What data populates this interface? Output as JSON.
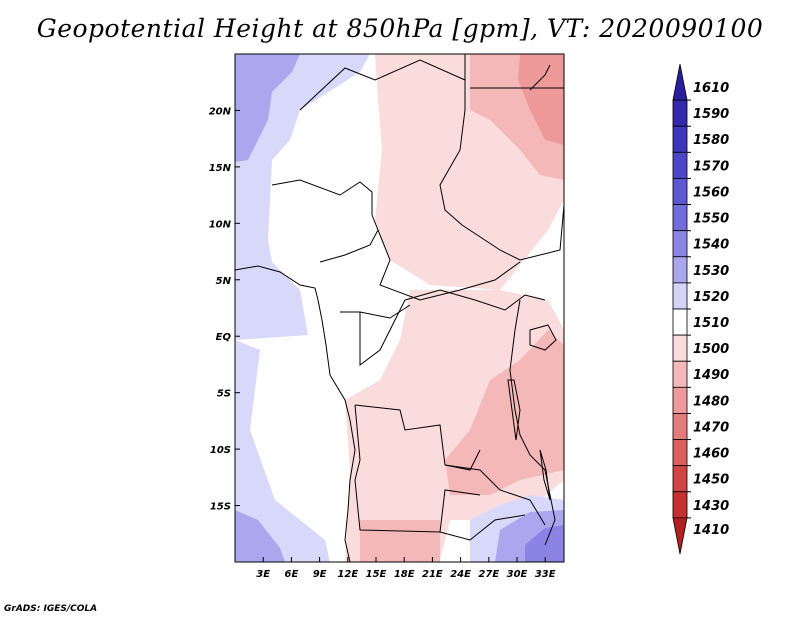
{
  "title": "Geopotential Height at 850hPa [gpm], VT: 2020090100",
  "credit": "GrADS: IGES/COLA",
  "map": {
    "lon_range": [
      0,
      35
    ],
    "lat_range": [
      -20,
      25
    ],
    "x_ticks": [
      {
        "v": 3,
        "label": "3E"
      },
      {
        "v": 6,
        "label": "6E"
      },
      {
        "v": 9,
        "label": "9E"
      },
      {
        "v": 12,
        "label": "12E"
      },
      {
        "v": 15,
        "label": "15E"
      },
      {
        "v": 18,
        "label": "18E"
      },
      {
        "v": 21,
        "label": "21E"
      },
      {
        "v": 24,
        "label": "24E"
      },
      {
        "v": 27,
        "label": "27E"
      },
      {
        "v": 30,
        "label": "30E"
      },
      {
        "v": 33,
        "label": "33E"
      }
    ],
    "y_ticks": [
      {
        "v": 20,
        "label": "20N"
      },
      {
        "v": 15,
        "label": "15N"
      },
      {
        "v": 10,
        "label": "10N"
      },
      {
        "v": 5,
        "label": "5N"
      },
      {
        "v": 0,
        "label": "EQ"
      },
      {
        "v": -5,
        "label": "5S"
      },
      {
        "v": -10,
        "label": "10S"
      },
      {
        "v": -15,
        "label": "15S"
      }
    ]
  },
  "colorbar": {
    "levels": [
      {
        "label": "1610",
        "color": "#2a1e9e"
      },
      {
        "label": "1590",
        "color": "#3428ad"
      },
      {
        "label": "1580",
        "color": "#3f35bc"
      },
      {
        "label": "1570",
        "color": "#4d45c8"
      },
      {
        "label": "1560",
        "color": "#5e57d2"
      },
      {
        "label": "1550",
        "color": "#726cdc"
      },
      {
        "label": "1540",
        "color": "#8a85e5"
      },
      {
        "label": "1530",
        "color": "#aaa7ee"
      },
      {
        "label": "1520",
        "color": "#d4d3f8"
      },
      {
        "label": "1510",
        "color": "#ffffff"
      },
      {
        "label": "1500",
        "color": "#fadcdc"
      },
      {
        "label": "1490",
        "color": "#f5b8b8"
      },
      {
        "label": "1480",
        "color": "#ee9a9a"
      },
      {
        "label": "1470",
        "color": "#e57c7c"
      },
      {
        "label": "1460",
        "color": "#dc5e5e"
      },
      {
        "label": "1450",
        "color": "#d24444"
      },
      {
        "label": "1430",
        "color": "#c63030"
      },
      {
        "label": "1410",
        "color": "#b52020"
      }
    ]
  }
}
